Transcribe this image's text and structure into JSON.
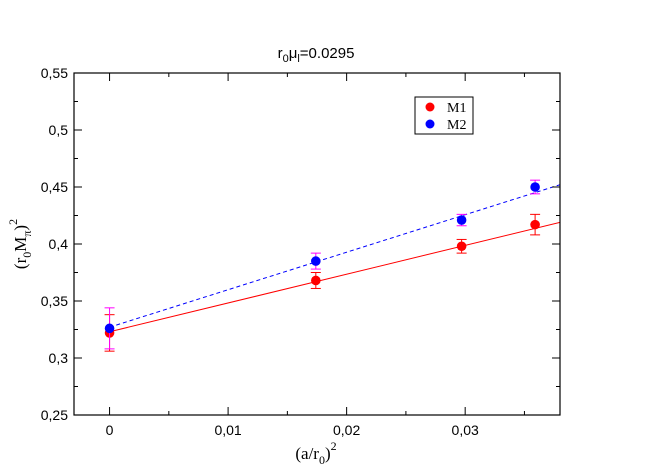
{
  "chart_data": {
    "type": "scatter",
    "title": {
      "base": "r",
      "sub1": "0",
      "mid": "μ",
      "sub2": "l",
      "rest": "=0.0295"
    },
    "xlabel": {
      "base": "(a/r",
      "sub": "0",
      "close": ")",
      "sup": "2"
    },
    "ylabel": {
      "base": "(r",
      "sub1": "0",
      "mid": "M",
      "sub2": "π",
      "close": ")",
      "sup": "2"
    },
    "xlim": [
      -0.003,
      0.038
    ],
    "ylim": [
      0.25,
      0.55
    ],
    "xticks": [
      0,
      0.01,
      0.02,
      0.03
    ],
    "xtick_labels": [
      "0",
      "0,01",
      "0,02",
      "0,03"
    ],
    "yticks": [
      0.25,
      0.3,
      0.35,
      0.4,
      0.45,
      0.5,
      0.55
    ],
    "ytick_labels": [
      "0,25",
      "0,3",
      "0,35",
      "0,4",
      "0,45",
      "0,5",
      "0,55"
    ],
    "legend_position": "top-right",
    "series": [
      {
        "name": "M1",
        "color": "#ff0000",
        "marker_color": "#ff0000",
        "errorbar_color": "#ff0000",
        "points": [
          {
            "x": 0.0,
            "y": 0.322,
            "err": 0.016
          },
          {
            "x": 0.0174,
            "y": 0.368,
            "err": 0.007
          },
          {
            "x": 0.0297,
            "y": 0.398,
            "err": 0.006
          },
          {
            "x": 0.0359,
            "y": 0.417,
            "err": 0.009
          }
        ],
        "fit": {
          "style": "solid",
          "x": [
            0.0,
            0.038
          ],
          "y": [
            0.323,
            0.419
          ]
        }
      },
      {
        "name": "M2",
        "color": "#0000ff",
        "marker_color": "#0000ff",
        "errorbar_color": "#ff00ff",
        "points": [
          {
            "x": 0.0,
            "y": 0.326,
            "err": 0.018
          },
          {
            "x": 0.0174,
            "y": 0.385,
            "err": 0.007
          },
          {
            "x": 0.0297,
            "y": 0.421,
            "err": 0.005
          },
          {
            "x": 0.0359,
            "y": 0.45,
            "err": 0.006
          }
        ],
        "fit": {
          "style": "dashed",
          "x": [
            0.0,
            0.038
          ],
          "y": [
            0.327,
            0.452
          ]
        }
      }
    ]
  }
}
